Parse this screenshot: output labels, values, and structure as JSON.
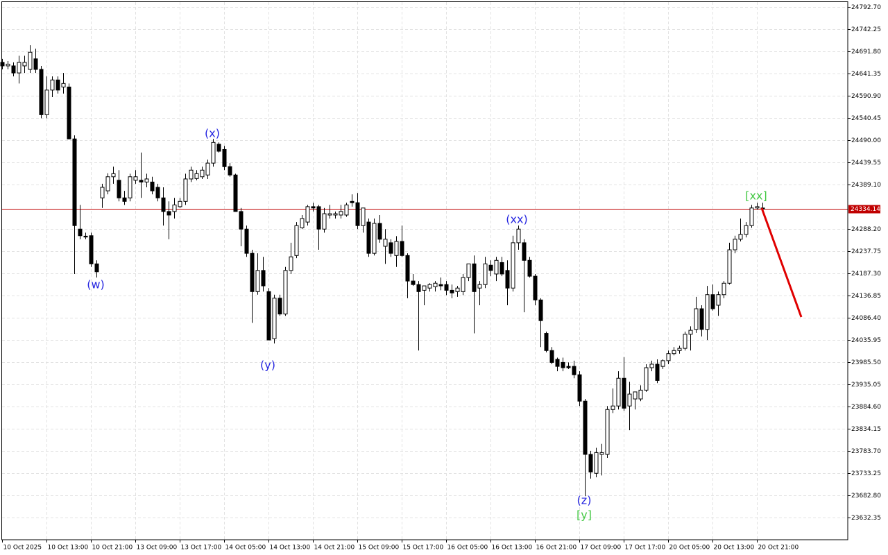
{
  "chart_data": {
    "type": "candlestick",
    "categories": [
      "10 Oct 2025",
      null,
      null,
      null,
      null,
      null,
      null,
      null,
      "10 Oct 13:00",
      null,
      null,
      null,
      null,
      null,
      null,
      null,
      "10 Oct 21:00",
      null,
      null,
      null,
      null,
      null,
      null,
      null,
      "13 Oct 09:00",
      null,
      null,
      null,
      null,
      null,
      null,
      null,
      "13 Oct 17:00",
      null,
      null,
      null,
      null,
      null,
      null,
      null,
      "14 Oct 05:00",
      null,
      null,
      null,
      null,
      null,
      null,
      null,
      "14 Oct 13:00",
      null,
      null,
      null,
      null,
      null,
      null,
      null,
      "14 Oct 21:00",
      null,
      null,
      null,
      null,
      null,
      null,
      null,
      "15 Oct 09:00",
      null,
      null,
      null,
      null,
      null,
      null,
      null,
      "15 Oct 17:00",
      null,
      null,
      null,
      null,
      null,
      null,
      null,
      "16 Oct 05:00",
      null,
      null,
      null,
      null,
      null,
      null,
      null,
      "16 Oct 13:00",
      null,
      null,
      null,
      null,
      null,
      null,
      null,
      "16 Oct 21:00",
      null,
      null,
      null,
      null,
      null,
      null,
      null,
      "17 Oct 09:00",
      null,
      null,
      null,
      null,
      null,
      null,
      null,
      "17 Oct 17:00",
      null,
      null,
      null,
      null,
      null,
      null,
      null,
      "20 Oct 05:00",
      null,
      null,
      null,
      null,
      null,
      null,
      null,
      "20 Oct 13:00",
      null,
      null,
      null,
      null,
      null,
      null,
      null,
      "20 Oct 21:00",
      null
    ],
    "open": [
      24667,
      24659,
      24659,
      24643,
      24659,
      24651,
      24675,
      24651,
      24548,
      24604,
      24627,
      24611,
      24611,
      24493,
      24288,
      24272,
      24273,
      24209,
      24359,
      24375,
      24407,
      24399,
      24359,
      24359,
      24399,
      24399,
      24395,
      24395,
      24383,
      24359,
      24328,
      24328,
      24339,
      24351,
      24402,
      24403,
      24407,
      24411,
      24438,
      24481,
      24469,
      24430,
      24411,
      24328,
      24288,
      24233,
      24146,
      24194,
      24146,
      24039,
      24131,
      24095,
      24194,
      24228,
      24291,
      24304,
      24339,
      24339,
      24288,
      24320,
      24320,
      24320,
      24320,
      24351,
      24348,
      24296,
      24304,
      24233,
      24301,
      24249,
      24257,
      24228,
      24260,
      24228,
      24170,
      24162,
      24149,
      24154,
      24157,
      24162,
      24162,
      24149,
      24146,
      24146,
      24178,
      24209,
      24154,
      24162,
      24206,
      24186,
      24212,
      24194,
      24154,
      24257,
      24257,
      24217,
      24181,
      24127,
      24051,
      24012,
      23992,
      23985,
      23976,
      23976,
      23957,
      23897,
      23776,
      23733,
      23776,
      23776,
      23878,
      23886,
      23949,
      23886,
      23902,
      23902,
      23922,
      23973,
      23981,
      23976,
      23989,
      24005,
      24012,
      24017,
      24049,
      24060,
      24107,
      24060,
      24139,
      24115,
      24139,
      24165,
      24241,
      24265,
      24276,
      24296,
      24336,
      24336
    ],
    "high": [
      24675,
      24670,
      24667,
      24682,
      24682,
      24706,
      24698,
      24659,
      24635,
      24635,
      24635,
      24643,
      24619,
      24501,
      24343,
      24280,
      24280,
      24217,
      24391,
      24415,
      24430,
      24422,
      24375,
      24414,
      24422,
      24462,
      24414,
      24407,
      24391,
      24383,
      24351,
      24359,
      24359,
      24414,
      24430,
      24422,
      24430,
      24446,
      24493,
      24485,
      24477,
      24438,
      24414,
      24336,
      24296,
      24241,
      24233,
      24225,
      24154,
      24139,
      24139,
      24202,
      24257,
      24304,
      24320,
      24343,
      24348,
      24343,
      24336,
      24343,
      24328,
      24343,
      24348,
      24367,
      24370,
      24336,
      24312,
      24312,
      24320,
      24288,
      24265,
      24272,
      24296,
      24233,
      24186,
      24170,
      24159,
      24165,
      24170,
      24178,
      24170,
      24162,
      24159,
      24186,
      24209,
      24228,
      24170,
      24225,
      24217,
      24225,
      24225,
      24217,
      24273,
      24296,
      24265,
      24225,
      24186,
      24131,
      24055,
      24020,
      23996,
      23996,
      23985,
      23989,
      23965,
      23902,
      23784,
      23791,
      23800,
      23886,
      23926,
      23965,
      23997,
      23941,
      23918,
      23933,
      23981,
      23989,
      23992,
      23992,
      24012,
      24020,
      24023,
      24055,
      24067,
      24134,
      24115,
      24159,
      24162,
      24146,
      24170,
      24257,
      24273,
      24312,
      24304,
      24343,
      24348,
      24348
    ],
    "low": [
      24651,
      24651,
      24635,
      24619,
      24643,
      24643,
      24643,
      24540,
      24540,
      24588,
      24596,
      24596,
      24493,
      24186,
      24265,
      24265,
      24202,
      24178,
      24336,
      24367,
      24391,
      24351,
      24343,
      24351,
      24391,
      24359,
      24383,
      24367,
      24351,
      24296,
      24265,
      24312,
      24336,
      24343,
      24395,
      24399,
      24402,
      24402,
      24430,
      24462,
      24422,
      24407,
      24328,
      24249,
      24225,
      24075,
      24139,
      24146,
      24036,
      24028,
      24091,
      24091,
      24186,
      24222,
      24288,
      24296,
      24328,
      24241,
      24280,
      24312,
      24312,
      24312,
      24316,
      24339,
      24288,
      24280,
      24225,
      24228,
      24257,
      24209,
      24225,
      24202,
      24225,
      24131,
      24159,
      24012,
      24115,
      24146,
      24146,
      24149,
      24138,
      24131,
      24134,
      24138,
      24170,
      24051,
      24115,
      24154,
      24181,
      24170,
      24181,
      24115,
      24146,
      24241,
      24099,
      24178,
      24115,
      24020,
      24008,
      23981,
      23965,
      23965,
      23970,
      23949,
      23886,
      23681,
      23721,
      23724,
      23728,
      23768,
      23870,
      23878,
      23875,
      23831,
      23878,
      23897,
      23918,
      23965,
      23938,
      23970,
      23981,
      24001,
      24005,
      24012,
      24012,
      24052,
      24044,
      24036,
      24103,
      24091,
      24131,
      24162,
      24233,
      24260,
      24269,
      24291,
      24332,
      24328
    ],
    "close": [
      24659,
      24663,
      24643,
      24667,
      24667,
      24690,
      24651,
      24548,
      24604,
      24627,
      24604,
      24619,
      24493,
      24296,
      24273,
      24270,
      24209,
      24191,
      24383,
      24407,
      24414,
      24359,
      24351,
      24407,
      24407,
      24395,
      24402,
      24375,
      24359,
      24328,
      24320,
      24343,
      24351,
      24402,
      24422,
      24414,
      24422,
      24438,
      24485,
      24465,
      24430,
      24411,
      24328,
      24288,
      24233,
      24146,
      24194,
      24159,
      24036,
      24131,
      24095,
      24194,
      24225,
      24296,
      24312,
      24339,
      24336,
      24288,
      24323,
      24323,
      24323,
      24328,
      24343,
      24348,
      24296,
      24336,
      24233,
      24301,
      24265,
      24265,
      24233,
      24260,
      24228,
      24170,
      24162,
      24146,
      24159,
      24162,
      24165,
      24159,
      24149,
      24143,
      24154,
      24178,
      24209,
      24146,
      24162,
      24209,
      24194,
      24217,
      24186,
      24154,
      24257,
      24288,
      24217,
      24181,
      24127,
      24080,
      24012,
      23985,
      23976,
      23973,
      23973,
      23957,
      23897,
      23776,
      23736,
      23780,
      23780,
      23878,
      23886,
      23949,
      23881,
      23913,
      23918,
      23922,
      23973,
      23981,
      23944,
      23989,
      24005,
      24012,
      24017,
      24049,
      24058,
      24107,
      24060,
      24139,
      24107,
      24139,
      24165,
      24241,
      24265,
      24276,
      24296,
      24336,
      24339,
      24334.14
    ],
    "up_color": "#ffffff",
    "down_color": "#000000",
    "price_line_color": "#c00000",
    "ylim": [
      23582,
      24804
    ],
    "yticks": [
      {
        "value": 24792.7,
        "label": "24792.70"
      },
      {
        "value": 24742.25,
        "label": "24742.25"
      },
      {
        "value": 24691.8,
        "label": "24691.80"
      },
      {
        "value": 24641.35,
        "label": "24641.35"
      },
      {
        "value": 24590.9,
        "label": "24590.90"
      },
      {
        "value": 24540.45,
        "label": "24540.45"
      },
      {
        "value": 24490,
        "label": "24490.00"
      },
      {
        "value": 24439.55,
        "label": "24439.55"
      },
      {
        "value": 24389.1,
        "label": "24389.10"
      },
      {
        "value": 24288.2,
        "label": "24288.20"
      },
      {
        "value": 24237.75,
        "label": "24237.75"
      },
      {
        "value": 24187.3,
        "label": "24187.30"
      },
      {
        "value": 24136.85,
        "label": "24136.85"
      },
      {
        "value": 24086.4,
        "label": "24086.40"
      },
      {
        "value": 24035.95,
        "label": "24035.95"
      },
      {
        "value": 23985.5,
        "label": "23985.50"
      },
      {
        "value": 23935.05,
        "label": "23935.05"
      },
      {
        "value": 23884.6,
        "label": "23884.60"
      },
      {
        "value": 23834.15,
        "label": "23834.15"
      },
      {
        "value": 23783.7,
        "label": "23783.70"
      },
      {
        "value": 23733.25,
        "label": "23733.25"
      },
      {
        "value": 23682.8,
        "label": "23682.80"
      },
      {
        "value": 23632.35,
        "label": "23632.35"
      }
    ],
    "grid": true,
    "annotations": [
      {
        "text": "(w)",
        "color": "#2424e0"
      },
      {
        "text": "(x)",
        "color": "#2424e0"
      },
      {
        "text": "(y)",
        "color": "#2424e0"
      },
      {
        "text": "(xx)",
        "color": "#2424e0"
      },
      {
        "text": "[xx]",
        "color": "#44c844"
      },
      {
        "text": "(z)",
        "color": "#2424e0"
      },
      {
        "text": "[y]",
        "color": "#44c844"
      }
    ]
  }
}
